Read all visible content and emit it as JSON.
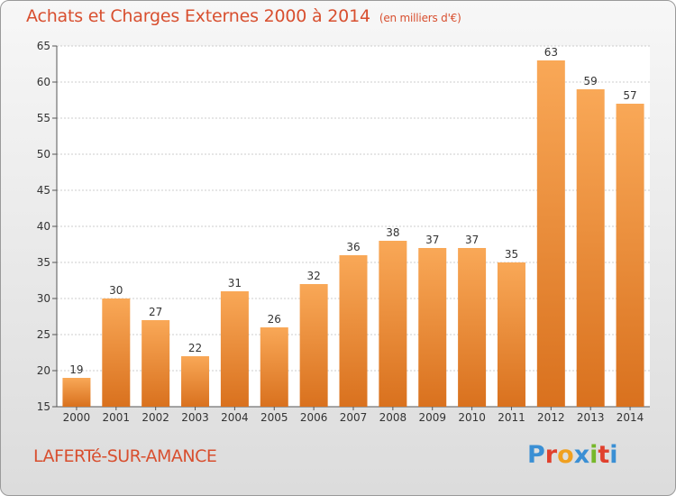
{
  "header": {
    "title": "Achats et Charges Externes 2000 à 2014",
    "unit": "(en milliers d'€)"
  },
  "footer": {
    "commune": "LAFERTé-SUR-AMANCE",
    "logo": "Proxiti"
  },
  "colors": {
    "bar_top": "#f9a857",
    "bar_bottom": "#d9711e",
    "title": "#d84f2f"
  },
  "chart_data": {
    "type": "bar",
    "title": "Achats et Charges Externes 2000 à 2014",
    "subtitle": "(en milliers d'€)",
    "categories": [
      "2000",
      "2001",
      "2002",
      "2003",
      "2004",
      "2005",
      "2006",
      "2007",
      "2008",
      "2009",
      "2010",
      "2011",
      "2012",
      "2013",
      "2014"
    ],
    "values": [
      19,
      30,
      27,
      22,
      31,
      26,
      32,
      36,
      38,
      37,
      37,
      35,
      63,
      59,
      57
    ],
    "ylim": [
      15,
      65
    ],
    "yticks": [
      15,
      20,
      25,
      30,
      35,
      40,
      45,
      50,
      55,
      60,
      65
    ],
    "grid": true,
    "xlabel": "",
    "ylabel": ""
  }
}
